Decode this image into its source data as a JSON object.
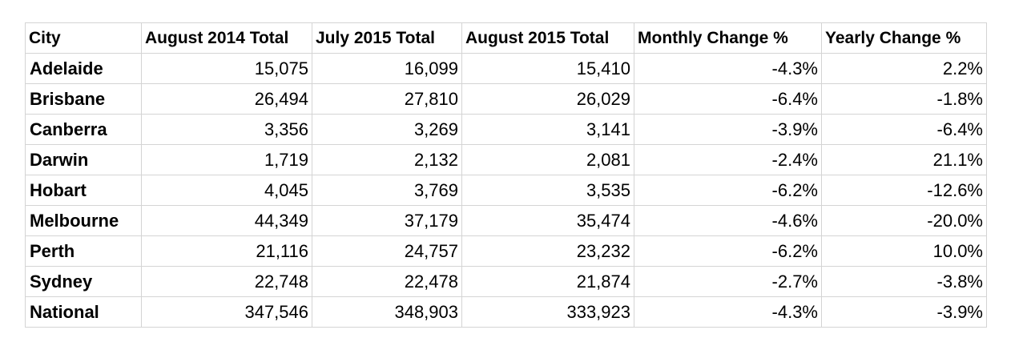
{
  "table": {
    "headers": [
      "City",
      "August 2014 Total",
      "July 2015 Total",
      "August 2015 Total",
      "Monthly Change %",
      "Yearly Change %"
    ],
    "rows": [
      [
        "Adelaide",
        "15,075",
        "16,099",
        "15,410",
        "-4.3%",
        "2.2%"
      ],
      [
        "Brisbane",
        "26,494",
        "27,810",
        "26,029",
        "-6.4%",
        "-1.8%"
      ],
      [
        "Canberra",
        "3,356",
        "3,269",
        "3,141",
        "-3.9%",
        "-6.4%"
      ],
      [
        "Darwin",
        "1,719",
        "2,132",
        "2,081",
        "-2.4%",
        "21.1%"
      ],
      [
        "Hobart",
        "4,045",
        "3,769",
        "3,535",
        "-6.2%",
        "-12.6%"
      ],
      [
        "Melbourne",
        "44,349",
        "37,179",
        "35,474",
        "-4.6%",
        "-20.0%"
      ],
      [
        "Perth",
        "21,116",
        "24,757",
        "23,232",
        "-6.2%",
        "10.0%"
      ],
      [
        "Sydney",
        "22,748",
        "22,478",
        "21,874",
        "-2.7%",
        "-3.8%"
      ],
      [
        "National",
        "347,546",
        "348,903",
        "333,923",
        "-4.3%",
        "-3.9%"
      ]
    ]
  },
  "colors": {
    "gridline": "#d4d4d4",
    "text": "#000000",
    "background": "#ffffff"
  }
}
